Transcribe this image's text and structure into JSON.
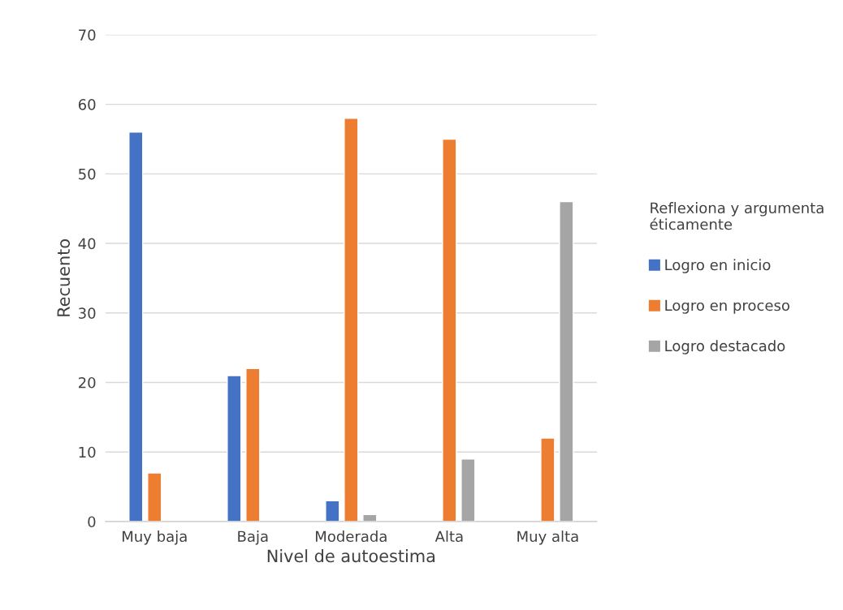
{
  "chart_data": {
    "type": "bar",
    "xlabel": "Nivel de autoestima",
    "ylabel": "Recuento",
    "legend_title": "Reflexiona y argumenta\néticamente",
    "categories": [
      "Muy baja",
      "Baja",
      "Moderada",
      "Alta",
      "Muy alta"
    ],
    "series": [
      {
        "name": "Logro en inicio",
        "color": "#4472c4",
        "values": [
          56,
          21,
          3,
          null,
          null
        ]
      },
      {
        "name": "Logro en proceso",
        "color": "#ed7d31",
        "values": [
          7,
          22,
          58,
          55,
          12
        ]
      },
      {
        "name": "Logro destacado",
        "color": "#a5a5a5",
        "values": [
          null,
          null,
          1,
          9,
          46
        ]
      }
    ],
    "ylim": [
      0,
      70
    ],
    "yticks": [
      0,
      10,
      20,
      30,
      40,
      50,
      60,
      70
    ],
    "grid": "y",
    "legend": "right"
  }
}
